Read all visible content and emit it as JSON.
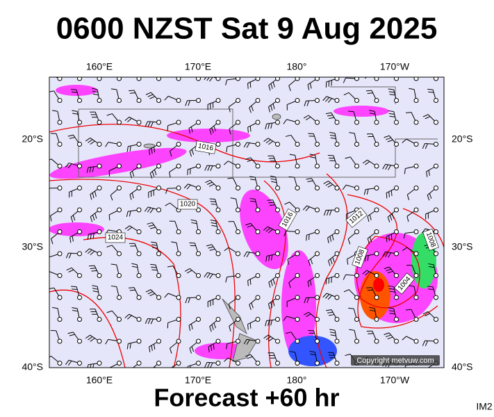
{
  "header": {
    "title": "0600 NZST Sat 9 Aug 2025"
  },
  "map": {
    "longitude_labels": [
      "160°E",
      "170°E",
      "180°",
      "170°W"
    ],
    "latitude_labels": [
      "20°S",
      "30°S",
      "40°S"
    ],
    "isobar_labels": [
      "1016",
      "1020",
      "1024",
      "1016",
      "1012",
      "1008",
      "1004",
      "1008"
    ],
    "copyright": "Copyright metvuw.com"
  },
  "footer": {
    "forecast": "Forecast +60 hr",
    "image_id": "IM2"
  }
}
